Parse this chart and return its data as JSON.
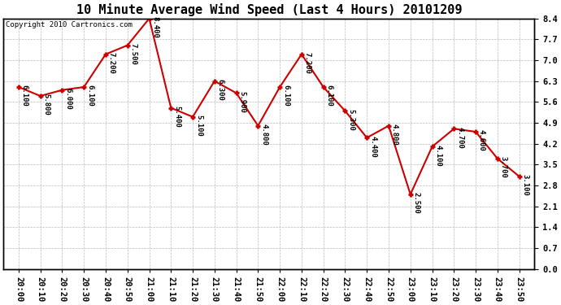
{
  "title": "10 Minute Average Wind Speed (Last 4 Hours) 20101209",
  "copyright": "Copyright 2010 Cartronics.com",
  "x_labels": [
    "20:00",
    "20:10",
    "20:20",
    "20:30",
    "20:40",
    "20:50",
    "21:00",
    "21:10",
    "21:20",
    "21:30",
    "21:40",
    "21:50",
    "22:00",
    "22:10",
    "22:20",
    "22:30",
    "22:40",
    "22:50",
    "23:00",
    "23:10",
    "23:20",
    "23:30",
    "23:40",
    "23:50"
  ],
  "y_values": [
    6.1,
    5.8,
    6.0,
    6.1,
    7.2,
    7.5,
    8.4,
    5.4,
    5.1,
    6.3,
    5.9,
    4.8,
    6.1,
    7.2,
    6.1,
    5.3,
    4.4,
    4.8,
    2.5,
    4.1,
    4.7,
    4.6,
    3.7,
    3.1
  ],
  "y_values_labels": [
    "6.100",
    "5.800",
    "6.000",
    "6.100",
    "7.200",
    "7.500",
    "8.400",
    "5.400",
    "5.100",
    "6.300",
    "5.900",
    "4.800",
    "6.100",
    "7.200",
    "6.100",
    "5.300",
    "4.400",
    "4.800",
    "2.500",
    "4.100",
    "4.700",
    "4.600",
    "3.700",
    "3.100"
  ],
  "line_color": "#cc0000",
  "marker_color": "#cc0000",
  "bg_color": "#ffffff",
  "grid_color": "#bbbbbb",
  "ylim": [
    0.0,
    8.4
  ],
  "yticks": [
    0.0,
    0.7,
    1.4,
    2.1,
    2.8,
    3.5,
    4.2,
    4.9,
    5.6,
    6.3,
    7.0,
    7.7,
    8.4
  ],
  "title_fontsize": 11,
  "label_fontsize": 6.5,
  "copyright_fontsize": 6.5,
  "tick_fontsize": 7.5
}
